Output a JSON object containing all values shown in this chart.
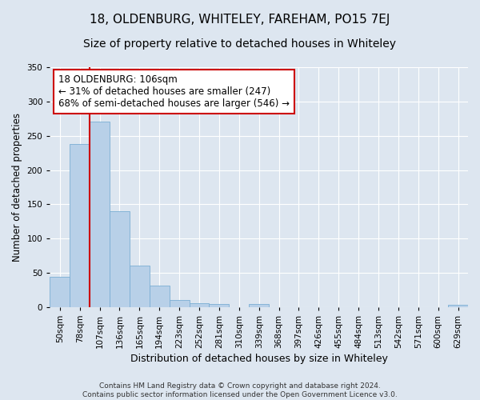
{
  "title": "18, OLDENBURG, WHITELEY, FAREHAM, PO15 7EJ",
  "subtitle": "Size of property relative to detached houses in Whiteley",
  "xlabel": "Distribution of detached houses by size in Whiteley",
  "ylabel": "Number of detached properties",
  "footer_line1": "Contains HM Land Registry data © Crown copyright and database right 2024.",
  "footer_line2": "Contains public sector information licensed under the Open Government Licence v3.0.",
  "categories": [
    "50sqm",
    "78sqm",
    "107sqm",
    "136sqm",
    "165sqm",
    "194sqm",
    "223sqm",
    "252sqm",
    "281sqm",
    "310sqm",
    "339sqm",
    "368sqm",
    "397sqm",
    "426sqm",
    "455sqm",
    "484sqm",
    "513sqm",
    "542sqm",
    "571sqm",
    "600sqm",
    "629sqm"
  ],
  "values": [
    44,
    238,
    271,
    140,
    60,
    31,
    10,
    6,
    4,
    0,
    4,
    0,
    0,
    0,
    0,
    0,
    0,
    0,
    0,
    0,
    3
  ],
  "bar_color": "#b8d0e8",
  "bar_edge_color": "#7aaed4",
  "vline_x_index": 2,
  "annotation_text": "18 OLDENBURG: 106sqm\n← 31% of detached houses are smaller (247)\n68% of semi-detached houses are larger (546) →",
  "annotation_box_color": "white",
  "annotation_box_edge_color": "#cc0000",
  "vline_color": "#cc0000",
  "ylim": [
    0,
    350
  ],
  "yticks": [
    0,
    50,
    100,
    150,
    200,
    250,
    300,
    350
  ],
  "background_color": "#dde6f0",
  "plot_background_color": "#dde6f0",
  "grid_color": "white",
  "title_fontsize": 11,
  "subtitle_fontsize": 10,
  "annotation_fontsize": 8.5,
  "axis_label_fontsize": 9,
  "ylabel_fontsize": 8.5,
  "tick_fontsize": 7.5,
  "footer_fontsize": 6.5
}
